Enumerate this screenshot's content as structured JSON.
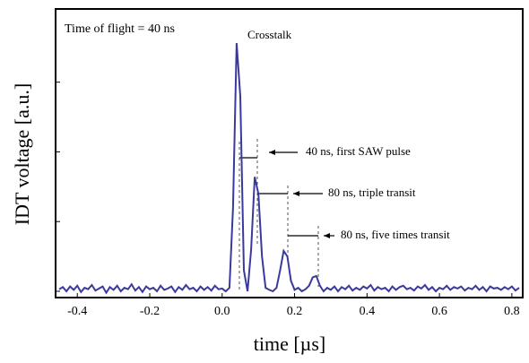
{
  "chart_data": {
    "type": "line",
    "xlabel": "time [µs]",
    "ylabel": "IDT voltage [a.u.]",
    "annotations": [
      "Time of flight = 40 ns",
      "Crosstalk",
      "40 ns, first SAW pulse",
      "80 ns, triple transit",
      "80 ns, five times transit"
    ],
    "x": [
      -0.45,
      -0.44,
      -0.43,
      -0.42,
      -0.41,
      -0.4,
      -0.39,
      -0.38,
      -0.37,
      -0.36,
      -0.35,
      -0.34,
      -0.33,
      -0.32,
      -0.31,
      -0.3,
      -0.29,
      -0.28,
      -0.27,
      -0.26,
      -0.25,
      -0.24,
      -0.23,
      -0.22,
      -0.21,
      -0.2,
      -0.19,
      -0.18,
      -0.17,
      -0.16,
      -0.15,
      -0.14,
      -0.13,
      -0.12,
      -0.11,
      -0.1,
      -0.09,
      -0.08,
      -0.07,
      -0.06,
      -0.05,
      -0.04,
      -0.03,
      -0.02,
      -0.01,
      0.0,
      0.01,
      0.02,
      0.03,
      0.04,
      0.05,
      0.06,
      0.07,
      0.08,
      0.09,
      0.1,
      0.11,
      0.12,
      0.13,
      0.14,
      0.15,
      0.16,
      0.17,
      0.18,
      0.19,
      0.2,
      0.21,
      0.22,
      0.23,
      0.24,
      0.25,
      0.26,
      0.27,
      0.28,
      0.29,
      0.3,
      0.31,
      0.32,
      0.33,
      0.34,
      0.35,
      0.36,
      0.37,
      0.38,
      0.39,
      0.4,
      0.41,
      0.42,
      0.43,
      0.44,
      0.45,
      0.46,
      0.47,
      0.48,
      0.49,
      0.5,
      0.51,
      0.52,
      0.53,
      0.54,
      0.55,
      0.56,
      0.57,
      0.58,
      0.59,
      0.6,
      0.61,
      0.62,
      0.63,
      0.64,
      0.65,
      0.66,
      0.67,
      0.68,
      0.69,
      0.7,
      0.71,
      0.72,
      0.73,
      0.74,
      0.75,
      0.76,
      0.77,
      0.78,
      0.79,
      0.8,
      0.81,
      0.82
    ],
    "series": [
      {
        "color": "#3a3a9e",
        "values": [
          0.03,
          0.06,
          0.0,
          0.07,
          0.02,
          0.08,
          -0.01,
          0.05,
          0.03,
          0.09,
          0.01,
          0.04,
          0.07,
          -0.02,
          0.06,
          0.02,
          0.08,
          0.0,
          0.05,
          0.03,
          0.1,
          0.01,
          0.06,
          -0.01,
          0.07,
          0.03,
          0.05,
          0.0,
          0.08,
          0.02,
          0.04,
          0.07,
          -0.01,
          0.06,
          0.02,
          0.09,
          0.03,
          0.05,
          0.0,
          0.07,
          0.02,
          0.06,
          0.01,
          0.08,
          0.03,
          0.04,
          0.0,
          0.05,
          1.2,
          3.56,
          2.8,
          0.3,
          0.0,
          0.6,
          1.64,
          1.4,
          0.5,
          0.05,
          0.02,
          0.0,
          0.05,
          0.3,
          0.58,
          0.5,
          0.15,
          0.02,
          0.05,
          0.0,
          0.03,
          0.08,
          0.2,
          0.22,
          0.08,
          0.0,
          0.05,
          0.02,
          0.07,
          0.0,
          0.06,
          0.03,
          0.08,
          0.01,
          0.05,
          0.02,
          0.07,
          0.04,
          0.09,
          0.01,
          0.06,
          0.03,
          0.05,
          0.0,
          0.07,
          0.02,
          0.06,
          0.08,
          0.03,
          0.05,
          0.01,
          0.07,
          0.04,
          0.09,
          0.02,
          0.06,
          0.0,
          0.05,
          0.03,
          0.08,
          0.02,
          0.06,
          0.04,
          0.07,
          0.01,
          0.05,
          0.03,
          0.08,
          0.02,
          0.06,
          0.0,
          0.07,
          0.04,
          0.05,
          0.02,
          0.06,
          0.03,
          0.07,
          0.01,
          0.05
        ]
      }
    ],
    "xlim": [
      -0.46,
      0.83
    ],
    "xticks": [
      -0.4,
      -0.2,
      {
        "value": 0,
        "label": "0.0"
      },
      0.2,
      0.4,
      0.6,
      0.8
    ],
    "ylim": [
      -0.09,
      4.05
    ],
    "yticks": [
      0,
      1,
      2,
      3
    ]
  }
}
